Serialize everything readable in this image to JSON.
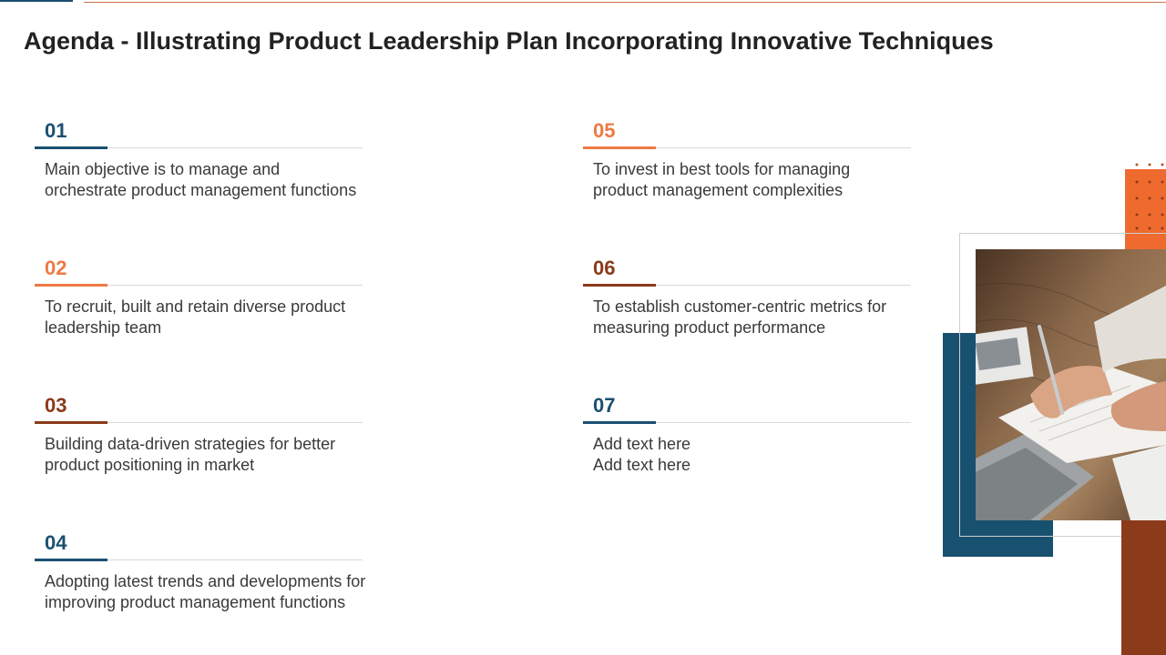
{
  "title": "Agenda - Illustrating Product Leadership Plan Incorporating Innovative Techniques",
  "colors": {
    "blue": "#1b4f72",
    "orange": "#ee7a45",
    "brown": "#8b3a1a",
    "dark_blue_block": "#18506f"
  },
  "items": [
    {
      "number": "01",
      "line1": "Main objective is to manage and",
      "line2": "orchestrate product management functions",
      "accent": "blue"
    },
    {
      "number": "02",
      "line1": "To recruit, built and retain diverse product",
      "line2": "leadership team",
      "accent": "orange"
    },
    {
      "number": "03",
      "line1": "Building data-driven strategies for better",
      "line2": "product positioning in market",
      "accent": "brown"
    },
    {
      "number": "04",
      "line1": "Adopting latest trends and developments for",
      "line2": "improving product management functions",
      "accent": "blue"
    },
    {
      "number": "05",
      "line1": "To invest in best tools for managing",
      "line2": "product management complexities",
      "accent": "orange"
    },
    {
      "number": "06",
      "line1": "To establish customer-centric metrics for",
      "line2": "measuring product performance",
      "accent": "brown"
    },
    {
      "number": "07",
      "line1": "Add text here",
      "line2": "Add text here",
      "accent": "blue"
    }
  ],
  "photo": {
    "icon": "person-writing-notebook-photo"
  }
}
